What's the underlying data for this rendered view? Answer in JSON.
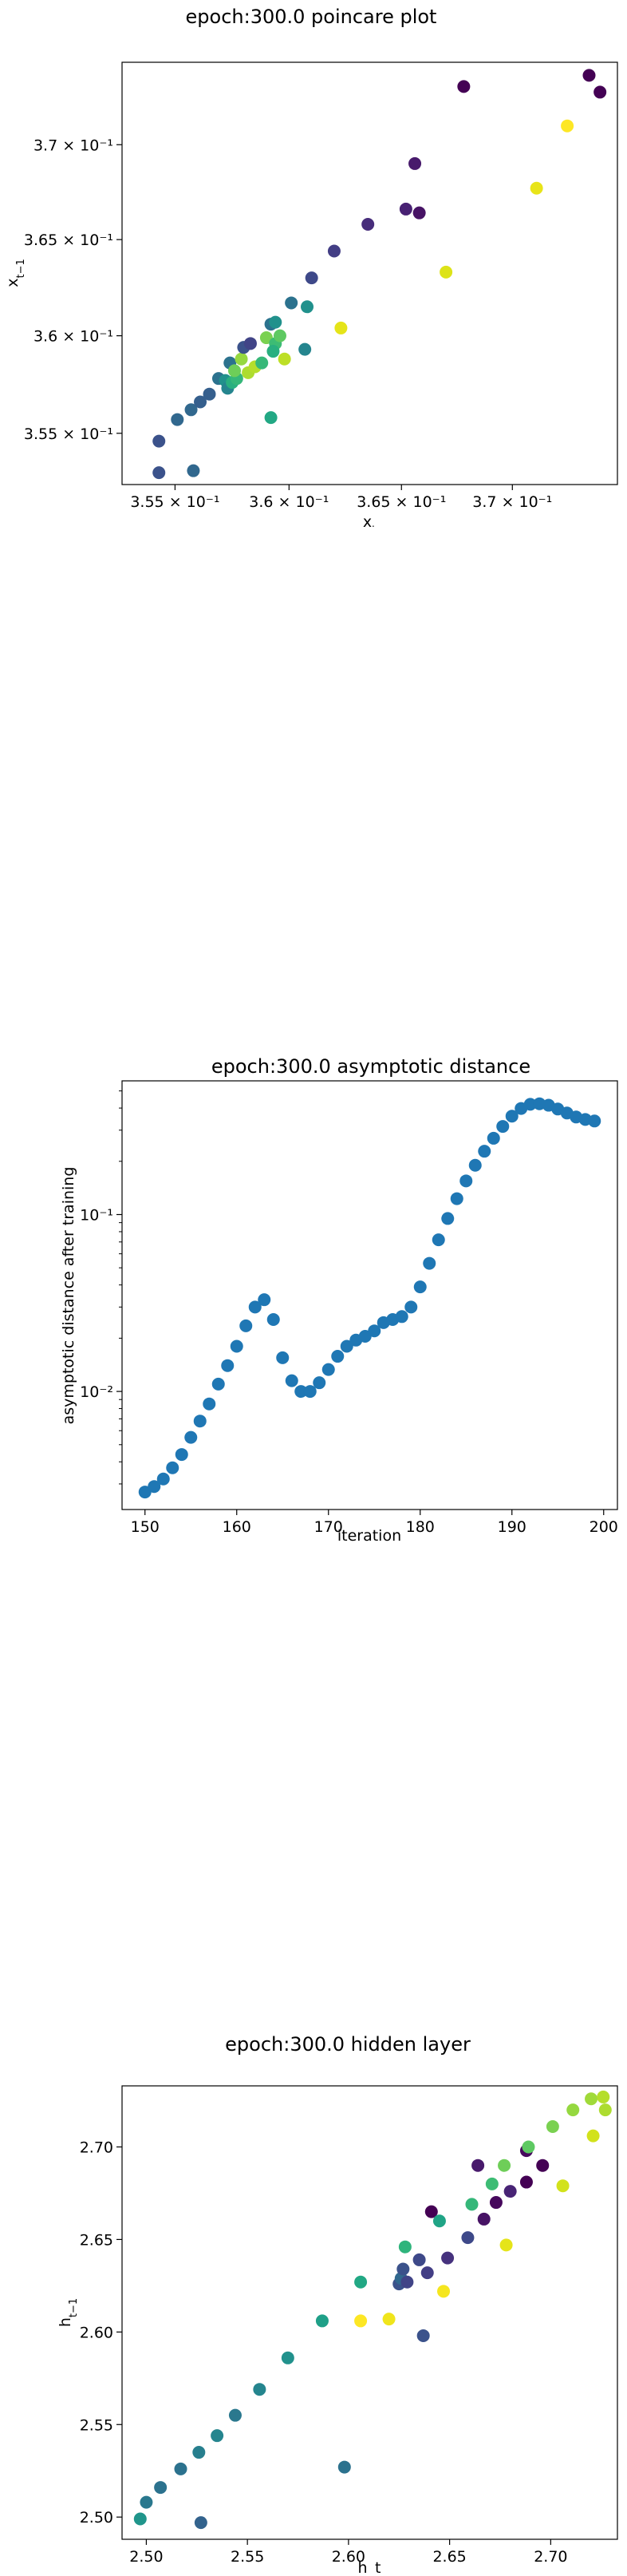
{
  "charts": [
    {
      "id": "poincare",
      "title": "epoch:300.0 poincare plot",
      "xlabel": "x_t",
      "ylabel": "x_{t-1}",
      "xticks": [
        {
          "v": 0.355,
          "label": "3.55 × 10⁻¹"
        },
        {
          "v": 0.36,
          "label": "3.6 × 10⁻¹"
        },
        {
          "v": 0.365,
          "label": "3.65 × 10⁻¹"
        },
        {
          "v": 0.37,
          "label": "3.7 × 10⁻¹"
        }
      ],
      "yticks": [
        {
          "v": 0.355,
          "label": "3.55 × 10⁻¹"
        },
        {
          "v": 0.36,
          "label": "3.6 × 10⁻¹"
        },
        {
          "v": 0.365,
          "label": "3.65 × 10⁻¹"
        },
        {
          "v": 0.37,
          "label": "3.7 × 10⁻¹"
        }
      ]
    },
    {
      "id": "asymptotic",
      "title": "epoch:300.0 asymptotic distance",
      "xlabel": "iteration",
      "ylabel": "asymptotic distance after training",
      "xticks": [
        {
          "v": 150,
          "label": "150"
        },
        {
          "v": 160,
          "label": "160"
        },
        {
          "v": 170,
          "label": "170"
        },
        {
          "v": 180,
          "label": "180"
        },
        {
          "v": 190,
          "label": "190"
        },
        {
          "v": 200,
          "label": "200"
        }
      ],
      "yticks": [
        {
          "v": 0.01,
          "label": "10⁻²"
        },
        {
          "v": 0.1,
          "label": "10⁻¹"
        }
      ]
    },
    {
      "id": "hidden",
      "title": "epoch:300.0 hidden layer",
      "xlabel": "h_t",
      "ylabel": "h_{t-1}",
      "xticks": [
        {
          "v": 2.5,
          "label": "2.50"
        },
        {
          "v": 2.55,
          "label": "2.55"
        },
        {
          "v": 2.6,
          "label": "2.60"
        },
        {
          "v": 2.65,
          "label": "2.65"
        },
        {
          "v": 2.7,
          "label": "2.70"
        }
      ],
      "yticks": [
        {
          "v": 2.5,
          "label": "2.50"
        },
        {
          "v": 2.55,
          "label": "2.55"
        },
        {
          "v": 2.6,
          "label": "2.60"
        },
        {
          "v": 2.65,
          "label": "2.65"
        },
        {
          "v": 2.7,
          "label": "2.70"
        }
      ]
    }
  ],
  "chart_data": [
    {
      "type": "scatter",
      "title": "epoch:300.0 poincare plot",
      "xlabel": "x_t",
      "ylabel": "x_{t-1}",
      "xscale": "log",
      "yscale": "log",
      "xlim": [
        0.3527,
        0.3748
      ],
      "ylim": [
        0.3524,
        0.3744
      ],
      "grid": false,
      "colormap": "viridis",
      "points": [
        {
          "x": 0.3543,
          "y": 0.3546,
          "c": "#3b528b"
        },
        {
          "x": 0.3543,
          "y": 0.353,
          "c": "#3b528b"
        },
        {
          "x": 0.3558,
          "y": 0.3531,
          "c": "#31688e"
        },
        {
          "x": 0.3551,
          "y": 0.3557,
          "c": "#31688e"
        },
        {
          "x": 0.3557,
          "y": 0.3562,
          "c": "#31688e"
        },
        {
          "x": 0.3561,
          "y": 0.3566,
          "c": "#355f8d"
        },
        {
          "x": 0.3565,
          "y": 0.357,
          "c": "#355f8d"
        },
        {
          "x": 0.3569,
          "y": 0.3578,
          "c": "#2c728e"
        },
        {
          "x": 0.3572,
          "y": 0.3577,
          "c": "#21918c"
        },
        {
          "x": 0.3573,
          "y": 0.3573,
          "c": "#25858e"
        },
        {
          "x": 0.3575,
          "y": 0.3576,
          "c": "#29af7f"
        },
        {
          "x": 0.3577,
          "y": 0.3578,
          "c": "#35b779"
        },
        {
          "x": 0.3574,
          "y": 0.3586,
          "c": "#2c728e"
        },
        {
          "x": 0.3576,
          "y": 0.3582,
          "c": "#6ece58"
        },
        {
          "x": 0.3579,
          "y": 0.3588,
          "c": "#95d840"
        },
        {
          "x": 0.358,
          "y": 0.3594,
          "c": "#3b528b"
        },
        {
          "x": 0.3583,
          "y": 0.3596,
          "c": "#414487"
        },
        {
          "x": 0.3582,
          "y": 0.3581,
          "c": "#addc30"
        },
        {
          "x": 0.3585,
          "y": 0.3584,
          "c": "#b5de2b"
        },
        {
          "x": 0.3588,
          "y": 0.3586,
          "c": "#37b878"
        },
        {
          "x": 0.359,
          "y": 0.3599,
          "c": "#7ad151"
        },
        {
          "x": 0.3592,
          "y": 0.3606,
          "c": "#2c728e"
        },
        {
          "x": 0.3594,
          "y": 0.3607,
          "c": "#21918c"
        },
        {
          "x": 0.3594,
          "y": 0.3596,
          "c": "#3dbc74"
        },
        {
          "x": 0.3593,
          "y": 0.3592,
          "c": "#29af7f"
        },
        {
          "x": 0.3596,
          "y": 0.36,
          "c": "#5ec962"
        },
        {
          "x": 0.3598,
          "y": 0.3588,
          "c": "#bddf26"
        },
        {
          "x": 0.3592,
          "y": 0.3558,
          "c": "#22a884"
        },
        {
          "x": 0.3601,
          "y": 0.3617,
          "c": "#2c728e"
        },
        {
          "x": 0.3607,
          "y": 0.3593,
          "c": "#25858e"
        },
        {
          "x": 0.361,
          "y": 0.363,
          "c": "#3e4989"
        },
        {
          "x": 0.3608,
          "y": 0.3615,
          "c": "#21918c"
        },
        {
          "x": 0.362,
          "y": 0.3644,
          "c": "#433e85"
        },
        {
          "x": 0.3623,
          "y": 0.3604,
          "c": "#e5e419"
        },
        {
          "x": 0.3635,
          "y": 0.3658,
          "c": "#472d7b"
        },
        {
          "x": 0.3652,
          "y": 0.3666,
          "c": "#482173"
        },
        {
          "x": 0.3656,
          "y": 0.369,
          "c": "#481a6c"
        },
        {
          "x": 0.3658,
          "y": 0.3664,
          "c": "#471365"
        },
        {
          "x": 0.367,
          "y": 0.3633,
          "c": "#dde318"
        },
        {
          "x": 0.3678,
          "y": 0.3731,
          "c": "#440154"
        },
        {
          "x": 0.3711,
          "y": 0.3677,
          "c": "#e8e419"
        },
        {
          "x": 0.3725,
          "y": 0.371,
          "c": "#fde725"
        },
        {
          "x": 0.3735,
          "y": 0.3737,
          "c": "#440154"
        },
        {
          "x": 0.374,
          "y": 0.3728,
          "c": "#440154"
        }
      ]
    },
    {
      "type": "scatter",
      "title": "epoch:300.0 asymptotic distance",
      "xlabel": "iteration",
      "ylabel": "asymptotic distance after training",
      "xlim": [
        147.5,
        201.5
      ],
      "ylim": [
        0.00215,
        0.57
      ],
      "yscale": "log",
      "grid": false,
      "color": "#1f77b4",
      "x": [
        150,
        151,
        152,
        153,
        154,
        155,
        156,
        157,
        158,
        159,
        160,
        161,
        162,
        163,
        164,
        165,
        166,
        167,
        168,
        169,
        170,
        171,
        172,
        173,
        174,
        175,
        176,
        177,
        178,
        179,
        180,
        181,
        182,
        183,
        184,
        185,
        186,
        187,
        188,
        189,
        190,
        191,
        192,
        193,
        194,
        195,
        196,
        197,
        198,
        199
      ],
      "y": [
        0.0027,
        0.0029,
        0.0032,
        0.0037,
        0.0044,
        0.0055,
        0.0068,
        0.0085,
        0.011,
        0.014,
        0.018,
        0.0235,
        0.03,
        0.033,
        0.0255,
        0.0155,
        0.0115,
        0.01,
        0.01,
        0.0112,
        0.0133,
        0.0158,
        0.018,
        0.0195,
        0.0205,
        0.022,
        0.0245,
        0.0255,
        0.0265,
        0.03,
        0.039,
        0.053,
        0.072,
        0.095,
        0.123,
        0.155,
        0.19,
        0.228,
        0.27,
        0.315,
        0.36,
        0.398,
        0.42,
        0.423,
        0.415,
        0.395,
        0.375,
        0.356,
        0.345,
        0.338
      ]
    },
    {
      "type": "scatter",
      "title": "epoch:300.0 hidden layer",
      "xlabel": "h_t",
      "ylabel": "h_{t-1}",
      "xlim": [
        2.488,
        2.733
      ],
      "ylim": [
        2.488,
        2.733
      ],
      "grid": false,
      "colormap": "viridis",
      "points": [
        {
          "x": 2.497,
          "y": 2.499,
          "c": "#20958b"
        },
        {
          "x": 2.5,
          "y": 2.508,
          "c": "#2a788e"
        },
        {
          "x": 2.507,
          "y": 2.516,
          "c": "#2c728e"
        },
        {
          "x": 2.527,
          "y": 2.497,
          "c": "#33638d"
        },
        {
          "x": 2.517,
          "y": 2.526,
          "c": "#2c728e"
        },
        {
          "x": 2.526,
          "y": 2.535,
          "c": "#277f8e"
        },
        {
          "x": 2.535,
          "y": 2.544,
          "c": "#25858e"
        },
        {
          "x": 2.544,
          "y": 2.555,
          "c": "#2a788e"
        },
        {
          "x": 2.556,
          "y": 2.569,
          "c": "#25858e"
        },
        {
          "x": 2.57,
          "y": 2.586,
          "c": "#21918c"
        },
        {
          "x": 2.587,
          "y": 2.606,
          "c": "#1fa088"
        },
        {
          "x": 2.598,
          "y": 2.527,
          "c": "#2c728e"
        },
        {
          "x": 2.606,
          "y": 2.627,
          "c": "#22a884"
        },
        {
          "x": 2.606,
          "y": 2.606,
          "c": "#fde725"
        },
        {
          "x": 2.62,
          "y": 2.607,
          "c": "#f0e51c"
        },
        {
          "x": 2.625,
          "y": 2.626,
          "c": "#3b528b"
        },
        {
          "x": 2.626,
          "y": 2.629,
          "c": "#31688e"
        },
        {
          "x": 2.627,
          "y": 2.634,
          "c": "#3b528b"
        },
        {
          "x": 2.628,
          "y": 2.646,
          "c": "#2fb47c"
        },
        {
          "x": 2.629,
          "y": 2.627,
          "c": "#414487"
        },
        {
          "x": 2.635,
          "y": 2.639,
          "c": "#3e4989"
        },
        {
          "x": 2.637,
          "y": 2.598,
          "c": "#3b528b"
        },
        {
          "x": 2.639,
          "y": 2.632,
          "c": "#433e85"
        },
        {
          "x": 2.641,
          "y": 2.665,
          "c": "#440154"
        },
        {
          "x": 2.645,
          "y": 2.66,
          "c": "#20a486"
        },
        {
          "x": 2.647,
          "y": 2.622,
          "c": "#f5e61f"
        },
        {
          "x": 2.649,
          "y": 2.64,
          "c": "#46327e"
        },
        {
          "x": 2.659,
          "y": 2.651,
          "c": "#3e4989"
        },
        {
          "x": 2.661,
          "y": 2.669,
          "c": "#35b779"
        },
        {
          "x": 2.664,
          "y": 2.69,
          "c": "#481a6c"
        },
        {
          "x": 2.667,
          "y": 2.661,
          "c": "#471365"
        },
        {
          "x": 2.671,
          "y": 2.68,
          "c": "#3dbc74"
        },
        {
          "x": 2.673,
          "y": 2.67,
          "c": "#46085c"
        },
        {
          "x": 2.677,
          "y": 2.69,
          "c": "#6ece58"
        },
        {
          "x": 2.678,
          "y": 2.647,
          "c": "#e5e419"
        },
        {
          "x": 2.68,
          "y": 2.676,
          "c": "#482475"
        },
        {
          "x": 2.688,
          "y": 2.681,
          "c": "#440154"
        },
        {
          "x": 2.688,
          "y": 2.698,
          "c": "#460a5d"
        },
        {
          "x": 2.689,
          "y": 2.7,
          "c": "#5ec962"
        },
        {
          "x": 2.696,
          "y": 2.69,
          "c": "#440154"
        },
        {
          "x": 2.701,
          "y": 2.711,
          "c": "#7ad151"
        },
        {
          "x": 2.706,
          "y": 2.679,
          "c": "#d2e21b"
        },
        {
          "x": 2.711,
          "y": 2.72,
          "c": "#95d840"
        },
        {
          "x": 2.72,
          "y": 2.726,
          "c": "#a0da39"
        },
        {
          "x": 2.721,
          "y": 2.706,
          "c": "#d2e21b"
        },
        {
          "x": 2.726,
          "y": 2.727,
          "c": "#b5de2b"
        },
        {
          "x": 2.727,
          "y": 2.72,
          "c": "#addc30"
        }
      ]
    }
  ]
}
